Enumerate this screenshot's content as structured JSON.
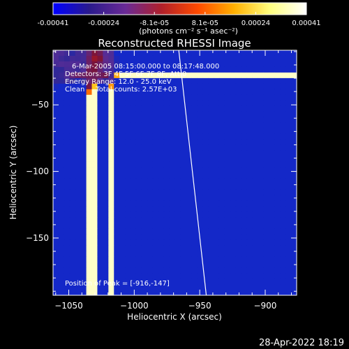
{
  "colorbar": {
    "tick_labels": [
      "-0.00041",
      "-0.00024",
      "-8.1e-05",
      "8.1e-05",
      "0.00024",
      "0.00041"
    ],
    "units": "(photons cm⁻² s⁻¹ asec⁻²)",
    "range": [
      -0.00041,
      0.00041
    ],
    "colors": [
      "#0000ff",
      "#2a1a8c",
      "#6a2a96",
      "#b0202a",
      "#ff4a00",
      "#ffb000",
      "#ffff80",
      "#ffffff"
    ]
  },
  "image": {
    "title": "Reconstructed RHESSI Image",
    "info_lines": [
      "6-Mar-2005 08:15:00.000 to 08:17:48.000",
      "Detectors: 3F 4F 5F 6F 7F 8F, Att 0",
      "Energy Range: 12.0 - 25.0 keV",
      "Clean     Total counts: 2.57E+03"
    ],
    "peak_label": "Position of Peak = [-916,-147]",
    "peak_position": {
      "x": -916,
      "y": -147
    },
    "limb_line": {
      "x_top": -966,
      "x_bottom": -945
    }
  },
  "axes": {
    "xlabel": "Heliocentric X (arcsec)",
    "ylabel": "Heliocentric Y (arcsec)",
    "xrange": [
      -1062,
      -876
    ],
    "yrange": [
      -193,
      -9
    ],
    "xticks": [
      {
        "value": -1050,
        "label": "−1050"
      },
      {
        "value": -1000,
        "label": "−1000"
      },
      {
        "value": -950,
        "label": "−950"
      },
      {
        "value": -900,
        "label": "−900"
      }
    ],
    "yticks": [
      {
        "value": -50,
        "label": "−50"
      },
      {
        "value": -100,
        "label": "−100"
      },
      {
        "value": -150,
        "label": "−150"
      }
    ]
  },
  "footer": {
    "timestamp": "28-Apr-2022 18:19"
  }
}
